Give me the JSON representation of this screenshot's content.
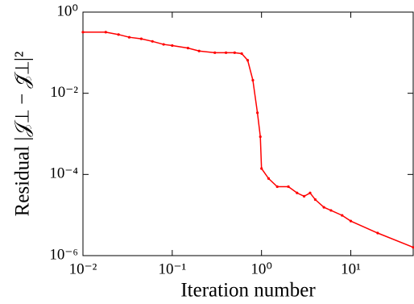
{
  "chart_data": {
    "type": "line",
    "log_x": true,
    "log_y": true,
    "x_label": "Iteration number",
    "y_label": "Residual |𝒥⊥ − 𝒥̃⊥|²",
    "x": [
      0.01,
      0.018,
      0.025,
      0.033,
      0.045,
      0.06,
      0.08,
      0.1,
      0.15,
      0.2,
      0.3,
      0.4,
      0.5,
      0.6,
      0.7,
      0.8,
      0.9,
      0.97,
      1.0,
      1.2,
      1.5,
      2,
      2.5,
      3,
      3.5,
      4,
      5,
      6,
      8,
      10,
      20,
      50
    ],
    "series": [
      {
        "name": "residual",
        "color": "#ff0000",
        "values": [
          0.32,
          0.32,
          0.28,
          0.24,
          0.22,
          0.19,
          0.16,
          0.15,
          0.13,
          0.11,
          0.1,
          0.1,
          0.1,
          0.095,
          0.065,
          0.021,
          0.0033,
          0.00085,
          0.00014,
          7.94e-05,
          5e-05,
          5e-05,
          3.5e-05,
          2.9e-05,
          3.5e-05,
          2.4e-05,
          1.55e-05,
          1.3e-05,
          9.8e-06,
          7.1e-06,
          3.6e-06,
          1.6e-06
        ]
      }
    ],
    "xlim": [
      0.01,
      50
    ],
    "ylim": [
      1e-06,
      1
    ],
    "xticks": [
      {
        "value": 0.01,
        "label": "10⁻²"
      },
      {
        "value": 0.1,
        "label": "10⁻¹"
      },
      {
        "value": 1,
        "label": "10⁰"
      },
      {
        "value": 10,
        "label": "10¹"
      }
    ],
    "yticks": [
      {
        "value": 1e-06,
        "label": "10⁻⁶"
      },
      {
        "value": 0.0001,
        "label": "10⁻⁴"
      },
      {
        "value": 0.01,
        "label": "10⁻²"
      },
      {
        "value": 1,
        "label": "10⁰"
      }
    ]
  }
}
